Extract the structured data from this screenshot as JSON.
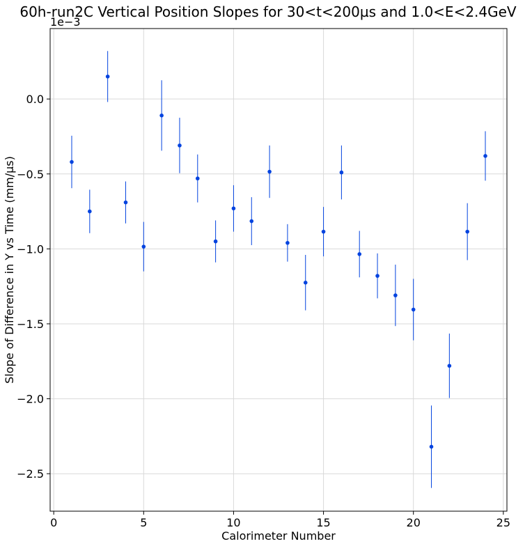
{
  "chart_data": {
    "type": "scatter",
    "title": "60h-run2C Vertical Position Slopes for 30<t<200µs and 1.0<E<2.4GeV",
    "xlabel": "Calorimeter Number",
    "ylabel": "Slope of Difference in Y vs Time (mm/µs)",
    "y_offset_label": "1e−3",
    "xlim": [
      -0.2,
      25.2
    ],
    "ylim": [
      -2.75,
      0.47
    ],
    "xticks": [
      0,
      5,
      10,
      15,
      20,
      25
    ],
    "xtick_labels": [
      "0",
      "5",
      "10",
      "15",
      "20",
      "25"
    ],
    "yticks": [
      0.0,
      -0.5,
      -1.0,
      -1.5,
      -2.0,
      -2.5
    ],
    "ytick_labels": [
      "0.0",
      "−0.5",
      "−1.0",
      "−1.5",
      "−2.0",
      "−2.5"
    ],
    "grid": true,
    "marker_color": "#0343df",
    "series": [
      {
        "x": [
          1,
          2,
          3,
          4,
          5,
          6,
          7,
          8,
          9,
          10,
          11,
          12,
          13,
          14,
          15,
          16,
          17,
          18,
          19,
          20,
          21,
          22,
          23,
          24
        ],
        "y": [
          -0.42,
          -0.75,
          0.15,
          -0.69,
          -0.985,
          -0.11,
          -0.31,
          -0.53,
          -0.95,
          -0.73,
          -0.815,
          -0.485,
          -0.96,
          -1.225,
          -0.885,
          -0.49,
          -1.035,
          -1.18,
          -1.31,
          -1.405,
          -2.32,
          -1.78,
          -0.885,
          -0.38
        ],
        "yerr": [
          0.175,
          0.145,
          0.17,
          0.14,
          0.165,
          0.235,
          0.185,
          0.16,
          0.14,
          0.155,
          0.16,
          0.175,
          0.125,
          0.185,
          0.165,
          0.18,
          0.155,
          0.15,
          0.205,
          0.205,
          0.275,
          0.215,
          0.19,
          0.165
        ]
      }
    ]
  }
}
